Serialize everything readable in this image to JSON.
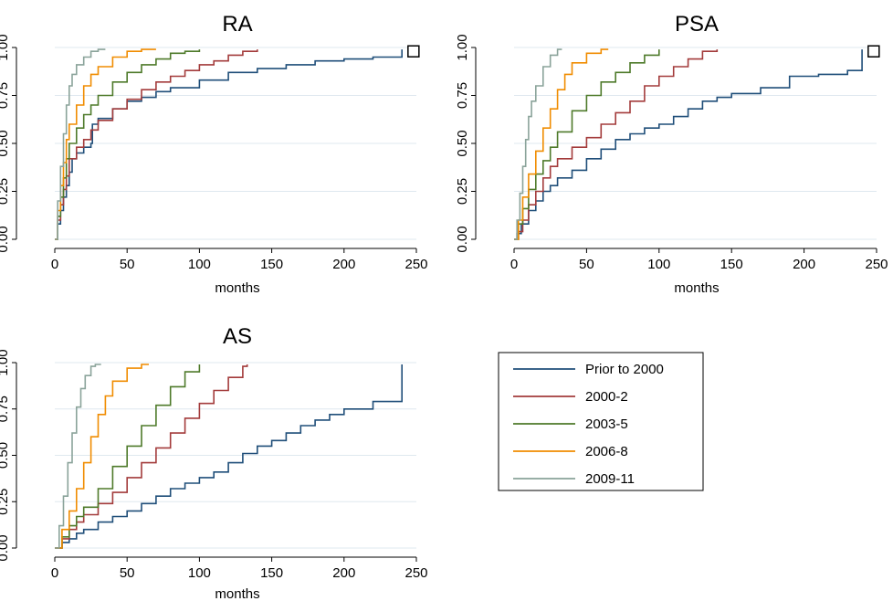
{
  "legend": {
    "entries": [
      {
        "label": "Prior to 2000",
        "color": "#1f4e79"
      },
      {
        "label": "2000-2",
        "color": "#a33b3b"
      },
      {
        "label": "2003-5",
        "color": "#4e7a2a"
      },
      {
        "label": "2006-8",
        "color": "#f08c00"
      },
      {
        "label": "2009-11",
        "color": "#8aa39a"
      }
    ]
  },
  "chart_data": [
    {
      "type": "line",
      "title": "RA",
      "xlabel": "months",
      "ylabel": "",
      "xlim": [
        0,
        250
      ],
      "ylim": [
        0,
        1
      ],
      "xticks": [
        "0",
        "50",
        "100",
        "150",
        "200",
        "250"
      ],
      "yticks": [
        "0.00",
        "0.25",
        "0.50",
        "0.75",
        "1.00"
      ],
      "grid": true,
      "marker": {
        "shape": "square",
        "x": 248,
        "y": 0.98
      },
      "series": [
        {
          "name": "Prior to 2000",
          "points": [
            [
              0,
              0
            ],
            [
              2,
              0.08
            ],
            [
              4,
              0.15
            ],
            [
              6,
              0.22
            ],
            [
              8,
              0.28
            ],
            [
              10,
              0.35
            ],
            [
              12,
              0.42
            ],
            [
              15,
              0.45
            ],
            [
              20,
              0.48
            ],
            [
              25,
              0.5
            ],
            [
              26,
              0.6
            ],
            [
              30,
              0.63
            ],
            [
              40,
              0.68
            ],
            [
              50,
              0.72
            ],
            [
              60,
              0.74
            ],
            [
              70,
              0.77
            ],
            [
              80,
              0.79
            ],
            [
              100,
              0.83
            ],
            [
              120,
              0.87
            ],
            [
              140,
              0.89
            ],
            [
              160,
              0.91
            ],
            [
              180,
              0.93
            ],
            [
              200,
              0.94
            ],
            [
              220,
              0.95
            ],
            [
              240,
              0.96
            ],
            [
              240,
              0.99
            ]
          ]
        },
        {
          "name": "2000-2",
          "points": [
            [
              0,
              0
            ],
            [
              2,
              0.1
            ],
            [
              4,
              0.18
            ],
            [
              6,
              0.26
            ],
            [
              8,
              0.33
            ],
            [
              10,
              0.42
            ],
            [
              15,
              0.48
            ],
            [
              20,
              0.52
            ],
            [
              25,
              0.57
            ],
            [
              30,
              0.62
            ],
            [
              40,
              0.68
            ],
            [
              50,
              0.73
            ],
            [
              60,
              0.78
            ],
            [
              70,
              0.82
            ],
            [
              80,
              0.85
            ],
            [
              90,
              0.88
            ],
            [
              100,
              0.91
            ],
            [
              110,
              0.93
            ],
            [
              120,
              0.96
            ],
            [
              130,
              0.98
            ],
            [
              140,
              0.99
            ]
          ]
        },
        {
          "name": "2003-5",
          "points": [
            [
              0,
              0
            ],
            [
              2,
              0.12
            ],
            [
              4,
              0.22
            ],
            [
              6,
              0.32
            ],
            [
              8,
              0.42
            ],
            [
              10,
              0.5
            ],
            [
              15,
              0.58
            ],
            [
              20,
              0.65
            ],
            [
              25,
              0.7
            ],
            [
              30,
              0.75
            ],
            [
              40,
              0.82
            ],
            [
              50,
              0.87
            ],
            [
              60,
              0.91
            ],
            [
              70,
              0.94
            ],
            [
              80,
              0.97
            ],
            [
              90,
              0.98
            ],
            [
              100,
              0.99
            ]
          ]
        },
        {
          "name": "2006-8",
          "points": [
            [
              0,
              0
            ],
            [
              2,
              0.15
            ],
            [
              4,
              0.28
            ],
            [
              6,
              0.4
            ],
            [
              8,
              0.52
            ],
            [
              10,
              0.6
            ],
            [
              15,
              0.7
            ],
            [
              20,
              0.8
            ],
            [
              25,
              0.86
            ],
            [
              30,
              0.9
            ],
            [
              40,
              0.95
            ],
            [
              50,
              0.98
            ],
            [
              60,
              0.99
            ],
            [
              70,
              0.99
            ]
          ]
        },
        {
          "name": "2009-11",
          "points": [
            [
              0,
              0
            ],
            [
              2,
              0.2
            ],
            [
              4,
              0.38
            ],
            [
              6,
              0.55
            ],
            [
              8,
              0.7
            ],
            [
              10,
              0.8
            ],
            [
              12,
              0.86
            ],
            [
              15,
              0.91
            ],
            [
              20,
              0.95
            ],
            [
              25,
              0.98
            ],
            [
              30,
              0.99
            ],
            [
              35,
              0.99
            ]
          ]
        }
      ]
    },
    {
      "type": "line",
      "title": "PSA",
      "xlabel": "months",
      "ylabel": "",
      "xlim": [
        0,
        250
      ],
      "ylim": [
        0,
        1
      ],
      "xticks": [
        "0",
        "50",
        "100",
        "150",
        "200",
        "250"
      ],
      "yticks": [
        "0.00",
        "0.25",
        "0.50",
        "0.75",
        "1.00"
      ],
      "grid": true,
      "marker": {
        "shape": "square",
        "x": 248,
        "y": 0.98
      },
      "series": [
        {
          "name": "Prior to 2000",
          "points": [
            [
              0,
              0
            ],
            [
              2,
              0.03
            ],
            [
              5,
              0.08
            ],
            [
              10,
              0.15
            ],
            [
              15,
              0.2
            ],
            [
              20,
              0.25
            ],
            [
              25,
              0.28
            ],
            [
              30,
              0.32
            ],
            [
              40,
              0.36
            ],
            [
              50,
              0.42
            ],
            [
              60,
              0.47
            ],
            [
              70,
              0.52
            ],
            [
              80,
              0.55
            ],
            [
              90,
              0.58
            ],
            [
              100,
              0.6
            ],
            [
              110,
              0.64
            ],
            [
              120,
              0.68
            ],
            [
              130,
              0.72
            ],
            [
              140,
              0.74
            ],
            [
              150,
              0.76
            ],
            [
              170,
              0.79
            ],
            [
              190,
              0.85
            ],
            [
              210,
              0.86
            ],
            [
              230,
              0.88
            ],
            [
              240,
              0.89
            ],
            [
              240,
              0.99
            ]
          ]
        },
        {
          "name": "2000-2",
          "points": [
            [
              0,
              0
            ],
            [
              3,
              0.04
            ],
            [
              6,
              0.1
            ],
            [
              10,
              0.18
            ],
            [
              15,
              0.25
            ],
            [
              20,
              0.32
            ],
            [
              25,
              0.38
            ],
            [
              30,
              0.42
            ],
            [
              40,
              0.48
            ],
            [
              50,
              0.53
            ],
            [
              60,
              0.6
            ],
            [
              70,
              0.66
            ],
            [
              80,
              0.72
            ],
            [
              90,
              0.8
            ],
            [
              100,
              0.85
            ],
            [
              110,
              0.9
            ],
            [
              120,
              0.94
            ],
            [
              130,
              0.98
            ],
            [
              140,
              0.99
            ]
          ]
        },
        {
          "name": "2003-5",
          "points": [
            [
              0,
              0
            ],
            [
              3,
              0.08
            ],
            [
              6,
              0.16
            ],
            [
              10,
              0.26
            ],
            [
              15,
              0.34
            ],
            [
              20,
              0.41
            ],
            [
              25,
              0.48
            ],
            [
              30,
              0.56
            ],
            [
              40,
              0.67
            ],
            [
              50,
              0.75
            ],
            [
              60,
              0.82
            ],
            [
              70,
              0.87
            ],
            [
              80,
              0.92
            ],
            [
              90,
              0.96
            ],
            [
              100,
              0.99
            ]
          ]
        },
        {
          "name": "2006-8",
          "points": [
            [
              0,
              0
            ],
            [
              3,
              0.1
            ],
            [
              6,
              0.22
            ],
            [
              10,
              0.34
            ],
            [
              15,
              0.46
            ],
            [
              20,
              0.58
            ],
            [
              25,
              0.68
            ],
            [
              30,
              0.78
            ],
            [
              35,
              0.86
            ],
            [
              40,
              0.92
            ],
            [
              50,
              0.97
            ],
            [
              60,
              0.99
            ],
            [
              65,
              0.99
            ]
          ]
        },
        {
          "name": "2009-11",
          "points": [
            [
              0,
              0
            ],
            [
              2,
              0.1
            ],
            [
              4,
              0.24
            ],
            [
              6,
              0.38
            ],
            [
              8,
              0.52
            ],
            [
              10,
              0.64
            ],
            [
              12,
              0.72
            ],
            [
              15,
              0.8
            ],
            [
              20,
              0.9
            ],
            [
              25,
              0.96
            ],
            [
              30,
              0.99
            ],
            [
              33,
              0.99
            ]
          ]
        }
      ]
    },
    {
      "type": "line",
      "title": "AS",
      "xlabel": "months",
      "ylabel": "",
      "xlim": [
        0,
        250
      ],
      "ylim": [
        0,
        1
      ],
      "xticks": [
        "0",
        "50",
        "100",
        "150",
        "200",
        "250"
      ],
      "yticks": [
        "0.00",
        "0.25",
        "0.50",
        "0.75",
        "1.00"
      ],
      "grid": true,
      "series": [
        {
          "name": "Prior to 2000",
          "points": [
            [
              0,
              0
            ],
            [
              5,
              0.03
            ],
            [
              10,
              0.05
            ],
            [
              15,
              0.08
            ],
            [
              20,
              0.1
            ],
            [
              30,
              0.14
            ],
            [
              40,
              0.17
            ],
            [
              50,
              0.2
            ],
            [
              60,
              0.24
            ],
            [
              70,
              0.28
            ],
            [
              80,
              0.32
            ],
            [
              90,
              0.35
            ],
            [
              100,
              0.38
            ],
            [
              110,
              0.41
            ],
            [
              120,
              0.46
            ],
            [
              130,
              0.51
            ],
            [
              140,
              0.55
            ],
            [
              150,
              0.58
            ],
            [
              160,
              0.62
            ],
            [
              170,
              0.66
            ],
            [
              180,
              0.69
            ],
            [
              190,
              0.72
            ],
            [
              200,
              0.75
            ],
            [
              220,
              0.79
            ],
            [
              240,
              0.81
            ],
            [
              240,
              0.99
            ]
          ]
        },
        {
          "name": "2000-2",
          "points": [
            [
              0,
              0
            ],
            [
              5,
              0.05
            ],
            [
              10,
              0.1
            ],
            [
              15,
              0.14
            ],
            [
              20,
              0.18
            ],
            [
              30,
              0.24
            ],
            [
              40,
              0.3
            ],
            [
              50,
              0.38
            ],
            [
              60,
              0.46
            ],
            [
              70,
              0.54
            ],
            [
              80,
              0.62
            ],
            [
              90,
              0.7
            ],
            [
              100,
              0.78
            ],
            [
              110,
              0.85
            ],
            [
              120,
              0.92
            ],
            [
              130,
              0.98
            ],
            [
              133,
              0.99
            ]
          ]
        },
        {
          "name": "2003-5",
          "points": [
            [
              0,
              0
            ],
            [
              5,
              0.06
            ],
            [
              10,
              0.12
            ],
            [
              15,
              0.17
            ],
            [
              20,
              0.22
            ],
            [
              30,
              0.32
            ],
            [
              40,
              0.44
            ],
            [
              50,
              0.55
            ],
            [
              60,
              0.66
            ],
            [
              70,
              0.77
            ],
            [
              80,
              0.87
            ],
            [
              90,
              0.95
            ],
            [
              100,
              0.99
            ]
          ]
        },
        {
          "name": "2006-8",
          "points": [
            [
              0,
              0
            ],
            [
              5,
              0.1
            ],
            [
              10,
              0.2
            ],
            [
              15,
              0.32
            ],
            [
              20,
              0.46
            ],
            [
              25,
              0.6
            ],
            [
              30,
              0.72
            ],
            [
              35,
              0.82
            ],
            [
              40,
              0.9
            ],
            [
              50,
              0.97
            ],
            [
              60,
              0.99
            ],
            [
              65,
              0.99
            ]
          ]
        },
        {
          "name": "2009-11",
          "points": [
            [
              0,
              0
            ],
            [
              3,
              0.12
            ],
            [
              6,
              0.28
            ],
            [
              9,
              0.46
            ],
            [
              12,
              0.62
            ],
            [
              15,
              0.76
            ],
            [
              18,
              0.86
            ],
            [
              21,
              0.93
            ],
            [
              25,
              0.98
            ],
            [
              28,
              0.99
            ],
            [
              32,
              0.99
            ]
          ]
        }
      ]
    }
  ]
}
